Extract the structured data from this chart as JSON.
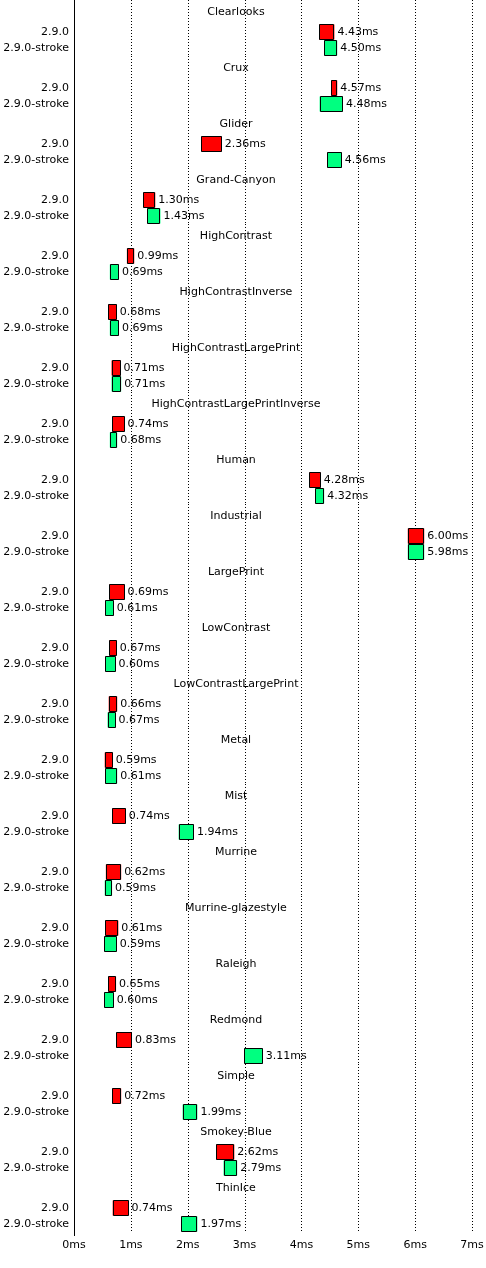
{
  "chart_data": [
    {
      "type": "bar",
      "orientation": "horizontal",
      "title": "Clearlooks",
      "categories": [
        "2.9.0",
        "2.9.0-stroke"
      ],
      "base": [
        4.31,
        4.4
      ],
      "values": [
        0.27,
        0.23
      ],
      "colors": [
        "#ff0000",
        "#00ff80"
      ],
      "annotations": [
        "4.43ms",
        "4.50ms"
      ],
      "xlim": [
        0,
        7
      ],
      "xticks": [
        {
          "value": 0,
          "label": null
        },
        {
          "value": 1,
          "label": null
        },
        {
          "value": 2,
          "label": null
        },
        {
          "value": 3,
          "label": null
        },
        {
          "value": 4,
          "label": null
        },
        {
          "value": 5,
          "label": null
        },
        {
          "value": 6,
          "label": null
        },
        {
          "value": 7,
          "label": null
        }
      ],
      "grid": "x",
      "tick_labels": "y"
    },
    {
      "type": "bar",
      "orientation": "horizontal",
      "title": "Crux",
      "categories": [
        "2.9.0",
        "2.9.0-stroke"
      ],
      "base": [
        4.52,
        4.32
      ],
      "values": [
        0.11,
        0.41
      ],
      "colors": [
        "#ff0000",
        "#00ff80"
      ],
      "annotations": [
        "4.57ms",
        "4.48ms"
      ],
      "xlim": [
        0,
        7
      ],
      "xticks": [
        {
          "value": 0,
          "label": null
        },
        {
          "value": 1,
          "label": null
        },
        {
          "value": 2,
          "label": null
        },
        {
          "value": 3,
          "label": null
        },
        {
          "value": 4,
          "label": null
        },
        {
          "value": 5,
          "label": null
        },
        {
          "value": 6,
          "label": null
        },
        {
          "value": 7,
          "label": null
        }
      ],
      "grid": "x",
      "tick_labels": "y"
    },
    {
      "type": "bar",
      "orientation": "horizontal",
      "title": "Glider",
      "categories": [
        "2.9.0",
        "2.9.0-stroke"
      ],
      "base": [
        2.24,
        4.45
      ],
      "values": [
        0.36,
        0.26
      ],
      "colors": [
        "#ff0000",
        "#00ff80"
      ],
      "annotations": [
        "2.36ms",
        "4.56ms"
      ],
      "xlim": [
        0,
        7
      ],
      "xticks": [
        {
          "value": 0,
          "label": null
        },
        {
          "value": 1,
          "label": null
        },
        {
          "value": 2,
          "label": null
        },
        {
          "value": 3,
          "label": null
        },
        {
          "value": 4,
          "label": null
        },
        {
          "value": 5,
          "label": null
        },
        {
          "value": 6,
          "label": null
        },
        {
          "value": 7,
          "label": null
        }
      ],
      "grid": "x",
      "tick_labels": "y"
    },
    {
      "type": "bar",
      "orientation": "horizontal",
      "title": "Grand-Canyon",
      "categories": [
        "2.9.0",
        "2.9.0-stroke"
      ],
      "base": [
        1.22,
        1.29
      ],
      "values": [
        0.21,
        0.23
      ],
      "colors": [
        "#ff0000",
        "#00ff80"
      ],
      "annotations": [
        "1.30ms",
        "1.43ms"
      ],
      "xlim": [
        0,
        7
      ],
      "xticks": [
        {
          "value": 0,
          "label": null
        },
        {
          "value": 1,
          "label": null
        },
        {
          "value": 2,
          "label": null
        },
        {
          "value": 3,
          "label": null
        },
        {
          "value": 4,
          "label": null
        },
        {
          "value": 5,
          "label": null
        },
        {
          "value": 6,
          "label": null
        },
        {
          "value": 7,
          "label": null
        }
      ],
      "grid": "x",
      "tick_labels": "y"
    },
    {
      "type": "bar",
      "orientation": "horizontal",
      "title": "HighContrast",
      "categories": [
        "2.9.0",
        "2.9.0-stroke"
      ],
      "base": [
        0.93,
        0.63
      ],
      "values": [
        0.13,
        0.16
      ],
      "colors": [
        "#ff0000",
        "#00ff80"
      ],
      "annotations": [
        "0.99ms",
        "0.69ms"
      ],
      "xlim": [
        0,
        7
      ],
      "xticks": [
        {
          "value": 0,
          "label": null
        },
        {
          "value": 1,
          "label": null
        },
        {
          "value": 2,
          "label": null
        },
        {
          "value": 3,
          "label": null
        },
        {
          "value": 4,
          "label": null
        },
        {
          "value": 5,
          "label": null
        },
        {
          "value": 6,
          "label": null
        },
        {
          "value": 7,
          "label": null
        }
      ],
      "grid": "x",
      "tick_labels": "y"
    },
    {
      "type": "bar",
      "orientation": "horizontal",
      "title": "HighContrastInverse",
      "categories": [
        "2.9.0",
        "2.9.0-stroke"
      ],
      "base": [
        0.6,
        0.63
      ],
      "values": [
        0.15,
        0.16
      ],
      "colors": [
        "#ff0000",
        "#00ff80"
      ],
      "annotations": [
        "0.68ms",
        "0.69ms"
      ],
      "xlim": [
        0,
        7
      ],
      "xticks": [
        {
          "value": 0,
          "label": null
        },
        {
          "value": 1,
          "label": null
        },
        {
          "value": 2,
          "label": null
        },
        {
          "value": 3,
          "label": null
        },
        {
          "value": 4,
          "label": null
        },
        {
          "value": 5,
          "label": null
        },
        {
          "value": 6,
          "label": null
        },
        {
          "value": 7,
          "label": null
        }
      ],
      "grid": "x",
      "tick_labels": "y"
    },
    {
      "type": "bar",
      "orientation": "horizontal",
      "title": "HighContrastLargePrint",
      "categories": [
        "2.9.0",
        "2.9.0-stroke"
      ],
      "base": [
        0.66,
        0.66
      ],
      "values": [
        0.16,
        0.17
      ],
      "colors": [
        "#ff0000",
        "#00ff80"
      ],
      "annotations": [
        "0.71ms",
        "0.71ms"
      ],
      "xlim": [
        0,
        7
      ],
      "xticks": [
        {
          "value": 0,
          "label": null
        },
        {
          "value": 1,
          "label": null
        },
        {
          "value": 2,
          "label": null
        },
        {
          "value": 3,
          "label": null
        },
        {
          "value": 4,
          "label": null
        },
        {
          "value": 5,
          "label": null
        },
        {
          "value": 6,
          "label": null
        },
        {
          "value": 7,
          "label": null
        }
      ],
      "grid": "x",
      "tick_labels": "y"
    },
    {
      "type": "bar",
      "orientation": "horizontal",
      "title": "HighContrastLargePrintInverse",
      "categories": [
        "2.9.0",
        "2.9.0-stroke"
      ],
      "base": [
        0.67,
        0.63
      ],
      "values": [
        0.22,
        0.13
      ],
      "colors": [
        "#ff0000",
        "#00ff80"
      ],
      "annotations": [
        "0.74ms",
        "0.68ms"
      ],
      "xlim": [
        0,
        7
      ],
      "xticks": [
        {
          "value": 0,
          "label": null
        },
        {
          "value": 1,
          "label": null
        },
        {
          "value": 2,
          "label": null
        },
        {
          "value": 3,
          "label": null
        },
        {
          "value": 4,
          "label": null
        },
        {
          "value": 5,
          "label": null
        },
        {
          "value": 6,
          "label": null
        },
        {
          "value": 7,
          "label": null
        }
      ],
      "grid": "x",
      "tick_labels": "y"
    },
    {
      "type": "bar",
      "orientation": "horizontal",
      "title": "Human",
      "categories": [
        "2.9.0",
        "2.9.0-stroke"
      ],
      "base": [
        4.14,
        4.24
      ],
      "values": [
        0.2,
        0.16
      ],
      "colors": [
        "#ff0000",
        "#00ff80"
      ],
      "annotations": [
        "4.28ms",
        "4.32ms"
      ],
      "xlim": [
        0,
        7
      ],
      "xticks": [
        {
          "value": 0,
          "label": null
        },
        {
          "value": 1,
          "label": null
        },
        {
          "value": 2,
          "label": null
        },
        {
          "value": 3,
          "label": null
        },
        {
          "value": 4,
          "label": null
        },
        {
          "value": 5,
          "label": null
        },
        {
          "value": 6,
          "label": null
        },
        {
          "value": 7,
          "label": null
        }
      ],
      "grid": "x",
      "tick_labels": "y"
    },
    {
      "type": "bar",
      "orientation": "horizontal",
      "title": "Industrial",
      "categories": [
        "2.9.0",
        "2.9.0-stroke"
      ],
      "base": [
        5.87,
        5.87
      ],
      "values": [
        0.29,
        0.29
      ],
      "colors": [
        "#ff0000",
        "#00ff80"
      ],
      "annotations": [
        "6.00ms",
        "5.98ms"
      ],
      "xlim": [
        0,
        7
      ],
      "xticks": [
        {
          "value": 0,
          "label": null
        },
        {
          "value": 1,
          "label": null
        },
        {
          "value": 2,
          "label": null
        },
        {
          "value": 3,
          "label": null
        },
        {
          "value": 4,
          "label": null
        },
        {
          "value": 5,
          "label": null
        },
        {
          "value": 6,
          "label": null
        },
        {
          "value": 7,
          "label": null
        }
      ],
      "grid": "x",
      "tick_labels": "y"
    },
    {
      "type": "bar",
      "orientation": "horizontal",
      "title": "LargePrint",
      "categories": [
        "2.9.0",
        "2.9.0-stroke"
      ],
      "base": [
        0.62,
        0.55
      ],
      "values": [
        0.27,
        0.15
      ],
      "colors": [
        "#ff0000",
        "#00ff80"
      ],
      "annotations": [
        "0.69ms",
        "0.61ms"
      ],
      "xlim": [
        0,
        7
      ],
      "xticks": [
        {
          "value": 0,
          "label": null
        },
        {
          "value": 1,
          "label": null
        },
        {
          "value": 2,
          "label": null
        },
        {
          "value": 3,
          "label": null
        },
        {
          "value": 4,
          "label": null
        },
        {
          "value": 5,
          "label": null
        },
        {
          "value": 6,
          "label": null
        },
        {
          "value": 7,
          "label": null
        }
      ],
      "grid": "x",
      "tick_labels": "y"
    },
    {
      "type": "bar",
      "orientation": "horizontal",
      "title": "LowContrast",
      "categories": [
        "2.9.0",
        "2.9.0-stroke"
      ],
      "base": [
        0.62,
        0.55
      ],
      "values": [
        0.13,
        0.18
      ],
      "colors": [
        "#ff0000",
        "#00ff80"
      ],
      "annotations": [
        "0.67ms",
        "0.60ms"
      ],
      "xlim": [
        0,
        7
      ],
      "xticks": [
        {
          "value": 0,
          "label": null
        },
        {
          "value": 1,
          "label": null
        },
        {
          "value": 2,
          "label": null
        },
        {
          "value": 3,
          "label": null
        },
        {
          "value": 4,
          "label": null
        },
        {
          "value": 5,
          "label": null
        },
        {
          "value": 6,
          "label": null
        },
        {
          "value": 7,
          "label": null
        }
      ],
      "grid": "x",
      "tick_labels": "y"
    },
    {
      "type": "bar",
      "orientation": "horizontal",
      "title": "LowContrastLargePrint",
      "categories": [
        "2.9.0",
        "2.9.0-stroke"
      ],
      "base": [
        0.61,
        0.59
      ],
      "values": [
        0.15,
        0.14
      ],
      "colors": [
        "#ff0000",
        "#00ff80"
      ],
      "annotations": [
        "0.66ms",
        "0.67ms"
      ],
      "xlim": [
        0,
        7
      ],
      "xticks": [
        {
          "value": 0,
          "label": null
        },
        {
          "value": 1,
          "label": null
        },
        {
          "value": 2,
          "label": null
        },
        {
          "value": 3,
          "label": null
        },
        {
          "value": 4,
          "label": null
        },
        {
          "value": 5,
          "label": null
        },
        {
          "value": 6,
          "label": null
        },
        {
          "value": 7,
          "label": null
        }
      ],
      "grid": "x",
      "tick_labels": "y"
    },
    {
      "type": "bar",
      "orientation": "horizontal",
      "title": "Metal",
      "categories": [
        "2.9.0",
        "2.9.0-stroke"
      ],
      "base": [
        0.54,
        0.55
      ],
      "values": [
        0.14,
        0.21
      ],
      "colors": [
        "#ff0000",
        "#00ff80"
      ],
      "annotations": [
        "0.59ms",
        "0.61ms"
      ],
      "xlim": [
        0,
        7
      ],
      "xticks": [
        {
          "value": 0,
          "label": null
        },
        {
          "value": 1,
          "label": null
        },
        {
          "value": 2,
          "label": null
        },
        {
          "value": 3,
          "label": null
        },
        {
          "value": 4,
          "label": null
        },
        {
          "value": 5,
          "label": null
        },
        {
          "value": 6,
          "label": null
        },
        {
          "value": 7,
          "label": null
        }
      ],
      "grid": "x",
      "tick_labels": "y"
    },
    {
      "type": "bar",
      "orientation": "horizontal",
      "title": "Mist",
      "categories": [
        "2.9.0",
        "2.9.0-stroke"
      ],
      "base": [
        0.67,
        1.84
      ],
      "values": [
        0.24,
        0.27
      ],
      "colors": [
        "#ff0000",
        "#00ff80"
      ],
      "annotations": [
        "0.74ms",
        "1.94ms"
      ],
      "xlim": [
        0,
        7
      ],
      "xticks": [
        {
          "value": 0,
          "label": null
        },
        {
          "value": 1,
          "label": null
        },
        {
          "value": 2,
          "label": null
        },
        {
          "value": 3,
          "label": null
        },
        {
          "value": 4,
          "label": null
        },
        {
          "value": 5,
          "label": null
        },
        {
          "value": 6,
          "label": null
        },
        {
          "value": 7,
          "label": null
        }
      ],
      "grid": "x",
      "tick_labels": "y"
    },
    {
      "type": "bar",
      "orientation": "horizontal",
      "title": "Murrine",
      "categories": [
        "2.9.0",
        "2.9.0-stroke"
      ],
      "base": [
        0.56,
        0.54
      ],
      "values": [
        0.27,
        0.13
      ],
      "colors": [
        "#ff0000",
        "#00ff80"
      ],
      "annotations": [
        "0.62ms",
        "0.59ms"
      ],
      "xlim": [
        0,
        7
      ],
      "xticks": [
        {
          "value": 0,
          "label": null
        },
        {
          "value": 1,
          "label": null
        },
        {
          "value": 2,
          "label": null
        },
        {
          "value": 3,
          "label": null
        },
        {
          "value": 4,
          "label": null
        },
        {
          "value": 5,
          "label": null
        },
        {
          "value": 6,
          "label": null
        },
        {
          "value": 7,
          "label": null
        }
      ],
      "grid": "x",
      "tick_labels": "y"
    },
    {
      "type": "bar",
      "orientation": "horizontal",
      "title": "Murrine-glazestyle",
      "categories": [
        "2.9.0",
        "2.9.0-stroke"
      ],
      "base": [
        0.55,
        0.53
      ],
      "values": [
        0.23,
        0.22
      ],
      "colors": [
        "#ff0000",
        "#00ff80"
      ],
      "annotations": [
        "0.61ms",
        "0.59ms"
      ],
      "xlim": [
        0,
        7
      ],
      "xticks": [
        {
          "value": 0,
          "label": null
        },
        {
          "value": 1,
          "label": null
        },
        {
          "value": 2,
          "label": null
        },
        {
          "value": 3,
          "label": null
        },
        {
          "value": 4,
          "label": null
        },
        {
          "value": 5,
          "label": null
        },
        {
          "value": 6,
          "label": null
        },
        {
          "value": 7,
          "label": null
        }
      ],
      "grid": "x",
      "tick_labels": "y"
    },
    {
      "type": "bar",
      "orientation": "horizontal",
      "title": "Raleigh",
      "categories": [
        "2.9.0",
        "2.9.0-stroke"
      ],
      "base": [
        0.6,
        0.53
      ],
      "values": [
        0.14,
        0.17
      ],
      "colors": [
        "#ff0000",
        "#00ff80"
      ],
      "annotations": [
        "0.65ms",
        "0.60ms"
      ],
      "xlim": [
        0,
        7
      ],
      "xticks": [
        {
          "value": 0,
          "label": null
        },
        {
          "value": 1,
          "label": null
        },
        {
          "value": 2,
          "label": null
        },
        {
          "value": 3,
          "label": null
        },
        {
          "value": 4,
          "label": null
        },
        {
          "value": 5,
          "label": null
        },
        {
          "value": 6,
          "label": null
        },
        {
          "value": 7,
          "label": null
        }
      ],
      "grid": "x",
      "tick_labels": "y"
    },
    {
      "type": "bar",
      "orientation": "horizontal",
      "title": "Redmond",
      "categories": [
        "2.9.0",
        "2.9.0-stroke"
      ],
      "base": [
        0.74,
        2.99
      ],
      "values": [
        0.28,
        0.33
      ],
      "colors": [
        "#ff0000",
        "#00ff80"
      ],
      "annotations": [
        "0.83ms",
        "3.11ms"
      ],
      "xlim": [
        0,
        7
      ],
      "xticks": [
        {
          "value": 0,
          "label": null
        },
        {
          "value": 1,
          "label": null
        },
        {
          "value": 2,
          "label": null
        },
        {
          "value": 3,
          "label": null
        },
        {
          "value": 4,
          "label": null
        },
        {
          "value": 5,
          "label": null
        },
        {
          "value": 6,
          "label": null
        },
        {
          "value": 7,
          "label": null
        }
      ],
      "grid": "x",
      "tick_labels": "y"
    },
    {
      "type": "bar",
      "orientation": "horizontal",
      "title": "Simple",
      "categories": [
        "2.9.0",
        "2.9.0-stroke"
      ],
      "base": [
        0.67,
        1.91
      ],
      "values": [
        0.16,
        0.26
      ],
      "colors": [
        "#ff0000",
        "#00ff80"
      ],
      "annotations": [
        "0.72ms",
        "1.99ms"
      ],
      "xlim": [
        0,
        7
      ],
      "xticks": [
        {
          "value": 0,
          "label": null
        },
        {
          "value": 1,
          "label": null
        },
        {
          "value": 2,
          "label": null
        },
        {
          "value": 3,
          "label": null
        },
        {
          "value": 4,
          "label": null
        },
        {
          "value": 5,
          "label": null
        },
        {
          "value": 6,
          "label": null
        },
        {
          "value": 7,
          "label": null
        }
      ],
      "grid": "x",
      "tick_labels": "y"
    },
    {
      "type": "bar",
      "orientation": "horizontal",
      "title": "Smokey-Blue",
      "categories": [
        "2.9.0",
        "2.9.0-stroke"
      ],
      "base": [
        2.5,
        2.63
      ],
      "values": [
        0.32,
        0.24
      ],
      "colors": [
        "#ff0000",
        "#00ff80"
      ],
      "annotations": [
        "2.62ms",
        "2.79ms"
      ],
      "xlim": [
        0,
        7
      ],
      "xticks": [
        {
          "value": 0,
          "label": null
        },
        {
          "value": 1,
          "label": null
        },
        {
          "value": 2,
          "label": null
        },
        {
          "value": 3,
          "label": null
        },
        {
          "value": 4,
          "label": null
        },
        {
          "value": 5,
          "label": null
        },
        {
          "value": 6,
          "label": null
        },
        {
          "value": 7,
          "label": null
        }
      ],
      "grid": "x",
      "tick_labels": "y"
    },
    {
      "type": "bar",
      "orientation": "horizontal",
      "title": "ThinIce",
      "categories": [
        "2.9.0",
        "2.9.0-stroke"
      ],
      "base": [
        0.68,
        1.89
      ],
      "values": [
        0.28,
        0.28
      ],
      "colors": [
        "#ff0000",
        "#00ff80"
      ],
      "annotations": [
        "0.74ms",
        "1.97ms"
      ],
      "xlim": [
        0,
        7
      ],
      "xticks": [
        {
          "value": 0,
          "label": "0ms"
        },
        {
          "value": 1,
          "label": "1ms"
        },
        {
          "value": 2,
          "label": "2ms"
        },
        {
          "value": 3,
          "label": "3ms"
        },
        {
          "value": 4,
          "label": "4ms"
        },
        {
          "value": 5,
          "label": "5ms"
        },
        {
          "value": 6,
          "label": "6ms"
        },
        {
          "value": 7,
          "label": "7ms"
        }
      ],
      "grid": "x"
    }
  ]
}
